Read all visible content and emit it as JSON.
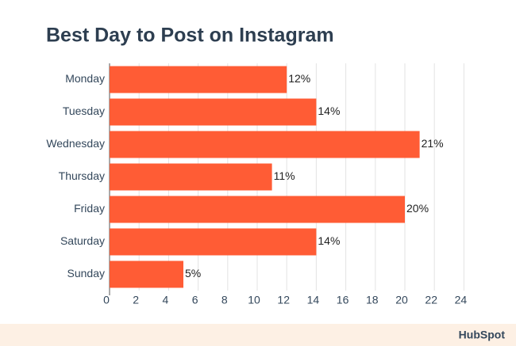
{
  "chart_data": {
    "type": "hbar",
    "title": "Best Day to Post on Instagram",
    "categories": [
      "Monday",
      "Tuesday",
      "Wednesday",
      "Thursday",
      "Friday",
      "Saturday",
      "Sunday"
    ],
    "values": [
      12,
      14,
      21,
      11,
      20,
      14,
      5
    ],
    "value_labels": [
      "12%",
      "14%",
      "21%",
      "11%",
      "20%",
      "14%",
      "5%"
    ],
    "color": "#ff5c35",
    "xlim": [
      0,
      25
    ],
    "xticks": [
      0,
      2,
      4,
      6,
      8,
      10,
      12,
      14,
      16,
      18,
      20,
      22,
      24
    ],
    "grid": true
  },
  "footer": {
    "brand": "HubSpot"
  }
}
